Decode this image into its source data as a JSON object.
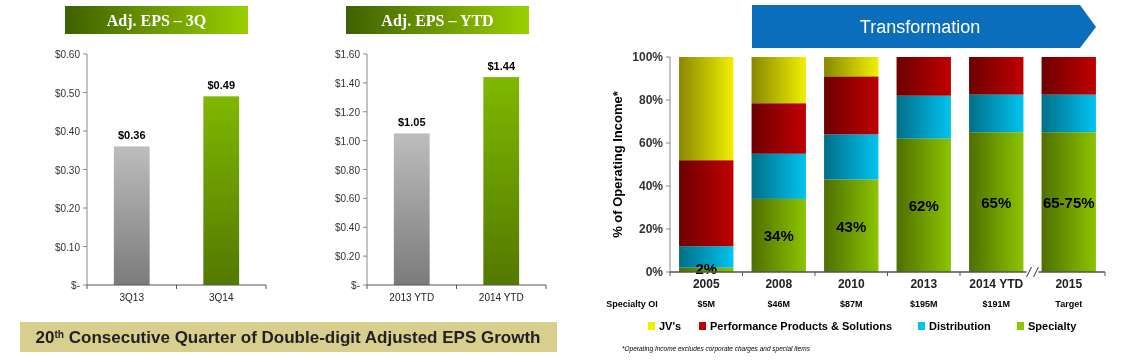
{
  "chart_data": [
    {
      "type": "bar",
      "title": "Adj. EPS – 3Q",
      "categories": [
        "3Q13",
        "3Q14"
      ],
      "values": [
        0.36,
        0.49
      ],
      "colors": [
        "#bdbdbd",
        "#7fb800"
      ],
      "value_labels": [
        "$0.36",
        "$0.49"
      ],
      "ylim": [
        0,
        0.6
      ],
      "yticks": [
        {
          "value": 0,
          "label": "$-"
        },
        {
          "value": 0.1,
          "label": "$0.10"
        },
        {
          "value": 0.2,
          "label": "$0.20"
        },
        {
          "value": 0.3,
          "label": "$0.30"
        },
        {
          "value": 0.4,
          "label": "$0.40"
        },
        {
          "value": 0.5,
          "label": "$0.50"
        },
        {
          "value": 0.6,
          "label": "$0.60"
        }
      ],
      "grid": false,
      "legend": false,
      "annotations": [
        "20$^{th}$ Consecutive Quarter of Double-digit Adjusted EPS Growth"
      ]
    },
    {
      "type": "bar",
      "title": "Adj. EPS – YTD",
      "categories": [
        "2013 YTD",
        "2014 YTD"
      ],
      "values": [
        1.05,
        1.44
      ],
      "colors": [
        "#bdbdbd",
        "#7fb800"
      ],
      "value_labels": [
        "$1.05",
        "$1.44"
      ],
      "ylim": [
        0,
        1.6
      ],
      "yticks": [
        {
          "value": 0,
          "label": "$-"
        },
        {
          "value": 0.2,
          "label": "$0.20"
        },
        {
          "value": 0.4,
          "label": "$0.40"
        },
        {
          "value": 0.6,
          "label": "$0.60"
        },
        {
          "value": 0.8,
          "label": "$0.80"
        },
        {
          "value": 1,
          "label": "$1.00"
        },
        {
          "value": 1.2,
          "label": "$1.20"
        },
        {
          "value": 1.4,
          "label": "$1.40"
        },
        {
          "value": 1.6,
          "label": "$1.60"
        }
      ],
      "grid": false,
      "legend": false
    },
    {
      "type": "bar",
      "stacked": true,
      "ylabel": "% of Operating Income*",
      "categories": [
        "2005",
        "2008",
        "2010",
        "2013",
        "2014 YTD",
        "2015"
      ],
      "series": [
        {
          "name": "Specialty",
          "color": "#8cc400",
          "values": [
            2,
            34,
            43,
            62,
            65,
            65
          ],
          "value_labels": [
            "2%",
            "34%",
            "43%",
            "62%",
            "65%",
            "65-75%"
          ]
        },
        {
          "name": "Distribution",
          "color": "#00c4f0",
          "values": [
            10,
            21,
            21,
            20,
            17.5,
            17.5
          ]
        },
        {
          "name": "Performance Products & Solutions",
          "color": "#c00000",
          "values": [
            40,
            23.5,
            27,
            18,
            17.5,
            17.5
          ]
        },
        {
          "name": "JV's",
          "color": "#f0f000",
          "values": [
            48,
            21.5,
            9,
            0,
            0,
            0
          ]
        }
      ],
      "ylim": [
        0,
        100
      ],
      "yticks": [
        {
          "value": 0,
          "label": "0%"
        },
        {
          "value": 20,
          "label": "20%"
        },
        {
          "value": 40,
          "label": "40%"
        },
        {
          "value": 60,
          "label": "60%"
        },
        {
          "value": 80,
          "label": "80%"
        },
        {
          "value": 100,
          "label": "100%"
        }
      ],
      "grid": false,
      "legend": "bottom",
      "annotations": [
        "Transformation",
        "Specialty OI",
        "$5M",
        "$46M",
        "$87M",
        "$195M",
        "$191M",
        "Target",
        "*Operating Income excludes corporate charges and special items"
      ]
    }
  ]
}
